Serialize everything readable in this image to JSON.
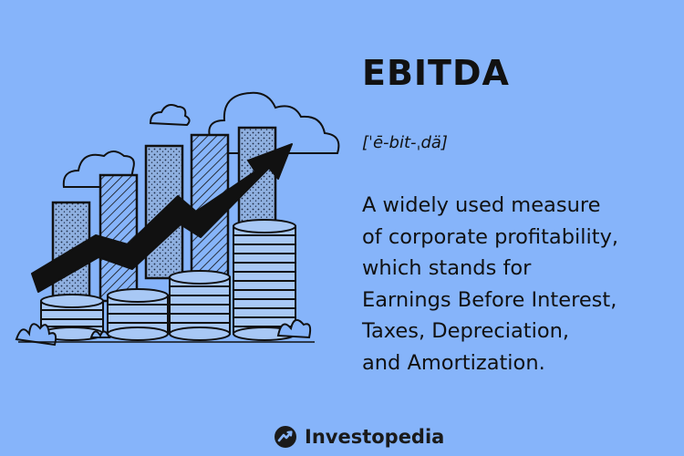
{
  "heading": {
    "title": "EBITDA",
    "pronunciation": "[ˈē-bit-ˌdä]"
  },
  "definition": {
    "lines": [
      "A widely used measure",
      "of corporate profitability,",
      "which stands for",
      "Earnings Before Interest,",
      "Taxes, Depreciation,",
      "and Amortization."
    ]
  },
  "brand": {
    "name": "Investopedia",
    "logo_icon": "investopedia-logo-icon"
  },
  "illustration": {
    "icon": "growth-chart-with-coins-icon",
    "colors": {
      "background": "#86b4fa",
      "ink": "#111111",
      "bar_fill": "#8fb0e0",
      "coin_fill": "#a8c8f5"
    }
  }
}
